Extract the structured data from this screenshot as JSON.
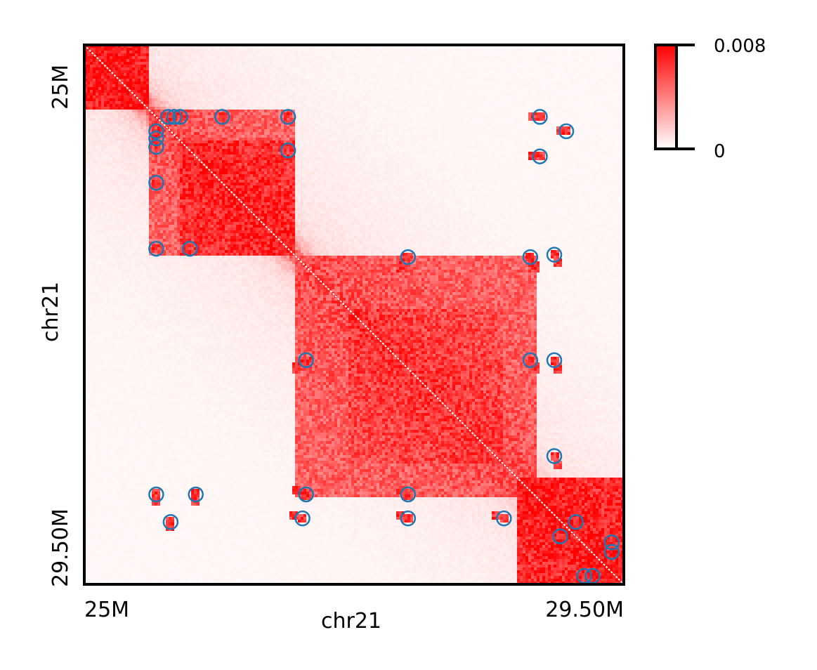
{
  "chart_data": {
    "type": "heatmap",
    "chromosome": "chr21",
    "xlabel": "chr21",
    "ylabel": "chr21",
    "x_range_mb": [
      25.0,
      29.5
    ],
    "y_range_mb": [
      25.0,
      29.5
    ],
    "x_tick_labels": [
      "25M",
      "29.50M"
    ],
    "y_tick_labels": [
      "25M",
      "29.50M"
    ],
    "colorbar": {
      "min": 0,
      "max": 0.008,
      "min_label": "0",
      "max_label": "0.008",
      "low_color": "#ffffff",
      "high_color": "#ff0000"
    },
    "diagonal_color": "#ffffff",
    "loop_marker_color": "#1f77b4",
    "domains_mb": [
      {
        "start": 25.0,
        "end": 25.55,
        "intensity": 0.95
      },
      {
        "start": 25.55,
        "end": 26.75,
        "intensity": 0.7
      },
      {
        "start": 25.8,
        "end": 26.75,
        "intensity": 0.9
      },
      {
        "start": 26.75,
        "end": 28.78,
        "intensity": 0.72
      },
      {
        "start": 27.2,
        "end": 28.5,
        "intensity": 0.82
      },
      {
        "start": 28.6,
        "end": 29.5,
        "intensity": 0.92
      }
    ],
    "loops_mb": [
      [
        25.7,
        25.6
      ],
      [
        25.75,
        25.6
      ],
      [
        25.8,
        25.6
      ],
      [
        26.15,
        25.6
      ],
      [
        26.7,
        25.6
      ],
      [
        28.8,
        25.6
      ],
      [
        29.02,
        25.72
      ],
      [
        25.6,
        25.72
      ],
      [
        25.6,
        25.78
      ],
      [
        25.6,
        25.85
      ],
      [
        26.7,
        25.88
      ],
      [
        28.8,
        25.93
      ],
      [
        25.6,
        26.15
      ],
      [
        25.6,
        26.7
      ],
      [
        25.88,
        26.7
      ],
      [
        27.7,
        26.77
      ],
      [
        28.72,
        26.77
      ],
      [
        28.92,
        26.75
      ],
      [
        26.85,
        27.63
      ],
      [
        28.72,
        27.63
      ],
      [
        28.92,
        27.63
      ],
      [
        28.92,
        28.43
      ],
      [
        25.6,
        28.75
      ],
      [
        25.93,
        28.75
      ],
      [
        26.85,
        28.75
      ],
      [
        27.7,
        28.75
      ],
      [
        25.72,
        28.98
      ],
      [
        26.82,
        28.95
      ],
      [
        27.7,
        28.95
      ],
      [
        28.5,
        28.95
      ],
      [
        29.1,
        28.98
      ],
      [
        28.97,
        29.1
      ],
      [
        29.4,
        29.15
      ],
      [
        29.4,
        29.23
      ],
      [
        29.17,
        29.43
      ],
      [
        29.24,
        29.43
      ]
    ]
  }
}
